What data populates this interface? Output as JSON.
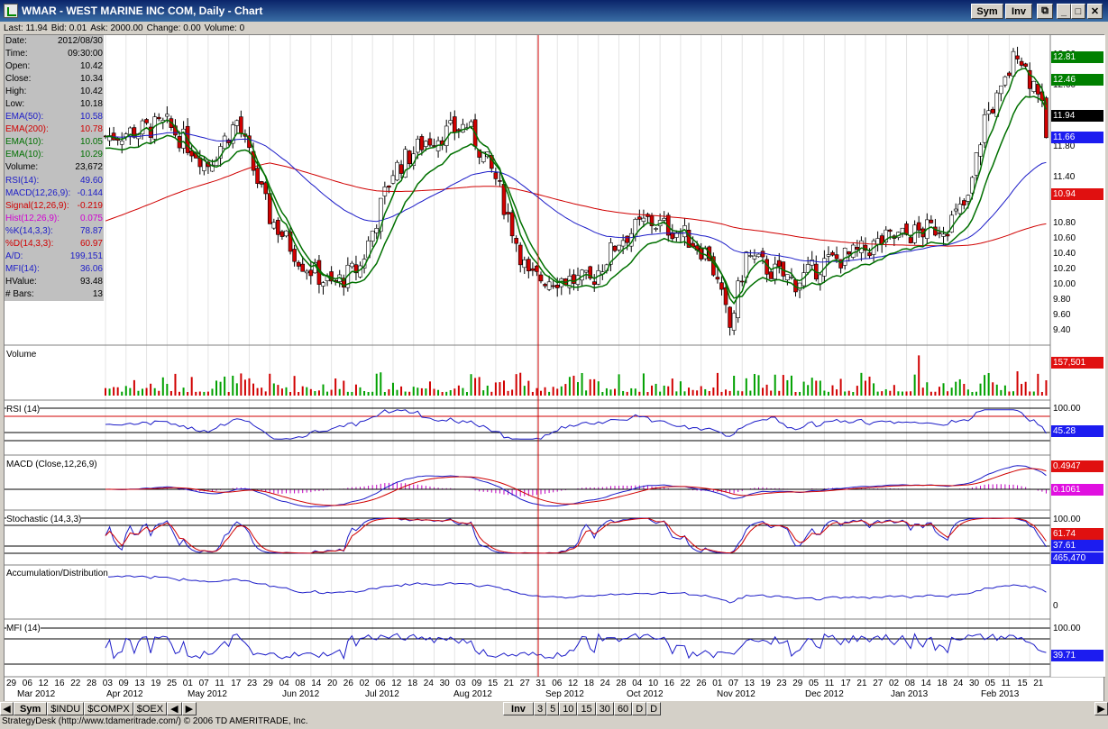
{
  "window": {
    "title": "WMAR - WEST MARINE INC COM, Daily - Chart",
    "sym_label": "Sym",
    "inv_label": "Inv"
  },
  "quote": {
    "last": "Last: 11.94",
    "bid": "Bid: 0.01",
    "ask": "Ask: 2000.00",
    "change": "Change: 0.00",
    "volume": "Volume: 0"
  },
  "info": [
    {
      "k": "Date:",
      "v": "2012/08/30",
      "c": "#000"
    },
    {
      "k": "Time:",
      "v": "09:30:00",
      "c": "#000"
    },
    {
      "k": "Open:",
      "v": "10.42",
      "c": "#000"
    },
    {
      "k": "Close:",
      "v": "10.34",
      "c": "#000"
    },
    {
      "k": "High:",
      "v": "10.42",
      "c": "#000"
    },
    {
      "k": "Low:",
      "v": "10.18",
      "c": "#000"
    },
    {
      "k": "EMA(50):",
      "v": "10.58",
      "c": "#1c1cc8"
    },
    {
      "k": "EMA(200):",
      "v": "10.78",
      "c": "#d00000"
    },
    {
      "k": "EMA(10):",
      "v": "10.05",
      "c": "#007000"
    },
    {
      "k": "EMA(10):",
      "v": "10.29",
      "c": "#007000"
    },
    {
      "k": "Volume:",
      "v": "23,672",
      "c": "#000"
    },
    {
      "k": "RSI(14):",
      "v": "49.60",
      "c": "#1c1cc8"
    },
    {
      "k": "MACD(12,26,9):",
      "v": "-0.144",
      "c": "#1c1cc8"
    },
    {
      "k": "Signal(12,26,9):",
      "v": "-0.219",
      "c": "#d00000"
    },
    {
      "k": "Hist(12,26,9):",
      "v": "0.075",
      "c": "#d000d0"
    },
    {
      "k": "%K(14,3,3):",
      "v": "78.87",
      "c": "#1c1cc8"
    },
    {
      "k": "%D(14,3,3):",
      "v": "60.97",
      "c": "#d00000"
    },
    {
      "k": "A/D:",
      "v": "199,151",
      "c": "#1c1cc8"
    },
    {
      "k": "MFI(14):",
      "v": "36.06",
      "c": "#1c1cc8"
    },
    {
      "k": "HValue:",
      "v": "93.48",
      "c": "#000"
    },
    {
      "k": "# Bars:",
      "v": "13",
      "c": "#000"
    }
  ],
  "panels": {
    "volume": "Volume",
    "rsi": "RSI (14)",
    "macd": "MACD (Close,12,26,9)",
    "stoch": "Stochastic (14,3,3)",
    "ad": "Accumulation/Distribution",
    "mfi": "MFI (14)"
  },
  "price_scale": [
    "13.00",
    "12.60",
    "12.20",
    "11.80",
    "11.40",
    "11.20",
    "10.80",
    "10.60",
    "10.40",
    "10.20",
    "10.00",
    "9.80",
    "9.60",
    "9.40"
  ],
  "price_labels": [
    {
      "text": "12.81",
      "bg": "#008000",
      "fg": "#fff"
    },
    {
      "text": "12.46",
      "bg": "#008000",
      "fg": "#fff"
    },
    {
      "text": "11.94",
      "bg": "#000000",
      "fg": "#fff"
    },
    {
      "text": "11.66",
      "bg": "#1c1cf0",
      "fg": "#fff"
    },
    {
      "text": "10.94",
      "bg": "#e01010",
      "fg": "#fff"
    }
  ],
  "volume_label": "157,501",
  "rsi_scale": [
    "100.00"
  ],
  "rsi_label": "45.28",
  "macd_labels": [
    "0.4947",
    "0.1061"
  ],
  "stoch_scale": [
    "100.00"
  ],
  "stoch_labels": [
    "61.74",
    "37.61"
  ],
  "ad_label": "465,470",
  "ad_zero": "0",
  "mfi_scale": [
    "100.00"
  ],
  "mfi_label": "39.71",
  "x_days": [
    "29",
    "06",
    "12",
    "16",
    "22",
    "28",
    "03",
    "09",
    "13",
    "19",
    "25",
    "01",
    "07",
    "11",
    "17",
    "23",
    "29",
    "04",
    "08",
    "14",
    "20",
    "26",
    "02",
    "06",
    "12",
    "18",
    "24",
    "30",
    "03",
    "09",
    "15",
    "21",
    "27",
    "31",
    "06",
    "12",
    "18",
    "24",
    "28",
    "04",
    "10",
    "16",
    "22",
    "26",
    "01",
    "07",
    "13",
    "19",
    "23",
    "29",
    "05",
    "11",
    "17",
    "21",
    "27",
    "02",
    "08",
    "14",
    "18",
    "24",
    "30",
    "05",
    "11",
    "15",
    "21"
  ],
  "x_months": [
    "Mar 2012",
    "Apr 2012",
    "May 2012",
    "Jun 2012",
    "Jul 2012",
    "Aug 2012",
    "Sep 2012",
    "Oct 2012",
    "Nov 2012",
    "Dec 2012",
    "Jan 2013",
    "Feb 2013"
  ],
  "tabs": [
    "Sym",
    "$INDU",
    "$COMPX",
    "$OEX"
  ],
  "period_tabs": [
    "Inv",
    "3",
    "5",
    "10",
    "15",
    "30",
    "60",
    "D",
    "D"
  ],
  "status": "StrategyDesk (http://www.tdameritrade.com/) © 2006 TD AMERITRADE, Inc.",
  "colors": {
    "up": "#ffffff",
    "down": "#d00000",
    "ema50": "#1c1cc8",
    "ema200": "#d00000",
    "ema10": "#007000",
    "cursor": "#d00000"
  }
}
